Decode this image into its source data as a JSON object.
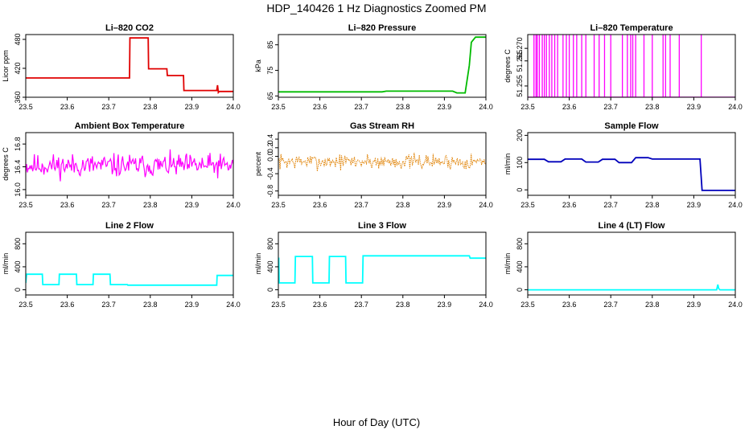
{
  "title": "HDP_140426  1 Hz Diagnostics Zoomed PM",
  "xlabel": "Hour of Day (UTC)",
  "chart_data": [
    {
      "type": "line",
      "title": "Li–820 CO2",
      "ylabel": "Licor ppm",
      "color": "#e00000",
      "xlim": [
        23.5,
        24.0
      ],
      "ylim": [
        360,
        490
      ],
      "xticks": [
        "23.5",
        "23.6",
        "23.7",
        "23.8",
        "23.9",
        "24.0"
      ],
      "yticks": [
        "360",
        "420",
        "480"
      ],
      "series": [
        {
          "x": [
            23.5,
            23.75,
            23.751,
            23.795,
            23.796,
            23.84,
            23.841,
            23.88,
            23.881,
            23.96,
            23.962,
            23.964,
            23.966,
            24.0
          ],
          "y": [
            400,
            400,
            483,
            483,
            419,
            419,
            405,
            405,
            374,
            374,
            385,
            370,
            372,
            372
          ]
        }
      ]
    },
    {
      "type": "line",
      "title": "Li–820 Pressure",
      "ylabel": "kPa",
      "color": "#00bb00",
      "xlim": [
        23.5,
        24.0
      ],
      "ylim": [
        64.5,
        89
      ],
      "xticks": [
        "23.5",
        "23.6",
        "23.7",
        "23.8",
        "23.9",
        "24.0"
      ],
      "yticks": [
        "65",
        "75",
        "85"
      ],
      "series": [
        {
          "x": [
            23.5,
            23.75,
            23.76,
            23.92,
            23.93,
            23.95,
            23.96,
            23.965,
            23.975,
            24.0
          ],
          "y": [
            66.6,
            66.6,
            66.9,
            66.9,
            66.2,
            66.2,
            77,
            86,
            88,
            88
          ]
        }
      ]
    },
    {
      "type": "line",
      "title": "Li–820 Temperature",
      "ylabel": "degrees C",
      "color": "#ff00ff",
      "xlim": [
        23.5,
        24.0
      ],
      "ylim": [
        51.2505,
        51.2755
      ],
      "xticks": [
        "23.5",
        "23.6",
        "23.7",
        "23.8",
        "23.9",
        "24.0"
      ],
      "yticks": [
        "51.255",
        "51.265",
        "51.270"
      ],
      "baseline": 51.2505,
      "peak": 51.2755,
      "spikes": [
        23.515,
        23.52,
        23.523,
        23.528,
        23.535,
        23.54,
        23.545,
        23.552,
        23.558,
        23.565,
        23.572,
        23.585,
        23.593,
        23.6,
        23.61,
        23.618,
        23.63,
        23.64,
        23.66,
        23.672,
        23.685,
        23.7,
        23.728,
        23.74,
        23.748,
        23.753,
        23.76,
        23.78,
        23.8,
        23.826,
        23.832,
        23.843,
        23.865,
        23.918
      ],
      "series": []
    },
    {
      "type": "line",
      "title": "Ambient Box Temperature",
      "ylabel": "degrees C",
      "color": "#ff00ff",
      "xlim": [
        23.5,
        24.0
      ],
      "ylim": [
        15.9,
        17.0
      ],
      "xticks": [
        "23.5",
        "23.6",
        "23.7",
        "23.8",
        "23.9",
        "24.0"
      ],
      "yticks": [
        "16.0",
        "16.4",
        "16.8"
      ],
      "noise": {
        "center": 16.42,
        "amplitude": 0.3,
        "seed": 11
      },
      "series": []
    },
    {
      "type": "scatter",
      "title": "Gas Stream RH",
      "ylabel": "percent",
      "color": "#e08000",
      "xlim": [
        23.5,
        24.0
      ],
      "ylim": [
        -0.9,
        0.55
      ],
      "xticks": [
        "23.5",
        "23.6",
        "23.7",
        "23.8",
        "23.9",
        "24.0"
      ],
      "yticks": [
        "-0.8",
        "-0.4",
        "0.0",
        "0.2",
        "0.4"
      ],
      "noise": {
        "center": -0.12,
        "amplitude": 0.26,
        "seed": 7
      },
      "series": []
    },
    {
      "type": "line",
      "title": "Sample Flow",
      "ylabel": "ml/min",
      "color": "#0000bb",
      "xlim": [
        23.5,
        24.0
      ],
      "ylim": [
        -20,
        210
      ],
      "xticks": [
        "23.5",
        "23.6",
        "23.7",
        "23.8",
        "23.9",
        "24.0"
      ],
      "yticks": [
        "0",
        "100",
        "200"
      ],
      "series": [
        {
          "x": [
            23.5,
            23.54,
            23.55,
            23.58,
            23.59,
            23.63,
            23.64,
            23.67,
            23.68,
            23.71,
            23.72,
            23.75,
            23.76,
            23.79,
            23.8,
            23.915,
            23.92,
            24.0
          ],
          "y": [
            112,
            112,
            103,
            103,
            113,
            113,
            102,
            102,
            112,
            112,
            100,
            100,
            118,
            118,
            113,
            113,
            -2,
            -2
          ]
        }
      ]
    },
    {
      "type": "line",
      "title": "Line 2 Flow",
      "ylabel": "ml/min",
      "color": "#00ffff",
      "xlim": [
        23.5,
        24.0
      ],
      "ylim": [
        -90,
        1000
      ],
      "xticks": [
        "23.5",
        "23.6",
        "23.7",
        "23.8",
        "23.9",
        "24.0"
      ],
      "yticks": [
        "0",
        "400",
        "800"
      ],
      "series": [
        {
          "x": [
            23.5,
            23.502,
            23.54,
            23.541,
            23.58,
            23.581,
            23.622,
            23.623,
            23.662,
            23.663,
            23.703,
            23.704,
            23.745,
            23.746,
            23.96,
            23.961,
            24.0
          ],
          "y": [
            120,
            270,
            270,
            90,
            90,
            270,
            270,
            90,
            90,
            270,
            270,
            90,
            90,
            80,
            80,
            250,
            250
          ]
        }
      ]
    },
    {
      "type": "line",
      "title": "Line 3 Flow",
      "ylabel": "ml/min",
      "color": "#00ffff",
      "xlim": [
        23.5,
        24.0
      ],
      "ylim": [
        -90,
        1000
      ],
      "xticks": [
        "23.5",
        "23.6",
        "23.7",
        "23.8",
        "23.9",
        "24.0"
      ],
      "yticks": [
        "0",
        "400",
        "800"
      ],
      "series": [
        {
          "x": [
            23.5,
            23.501,
            23.502,
            23.54,
            23.541,
            23.582,
            23.583,
            23.622,
            23.623,
            23.662,
            23.663,
            23.703,
            23.704,
            23.96,
            23.962,
            24.0
          ],
          "y": [
            120,
            560,
            120,
            120,
            580,
            580,
            120,
            120,
            580,
            580,
            120,
            120,
            590,
            590,
            550,
            550
          ]
        }
      ]
    },
    {
      "type": "line",
      "title": "Line 4 (LT) Flow",
      "ylabel": "ml/min",
      "color": "#00ffff",
      "xlim": [
        23.5,
        24.0
      ],
      "ylim": [
        -90,
        1000
      ],
      "xticks": [
        "23.5",
        "23.6",
        "23.7",
        "23.8",
        "23.9",
        "24.0"
      ],
      "yticks": [
        "0",
        "400",
        "800"
      ],
      "series": [
        {
          "x": [
            23.5,
            23.955,
            23.958,
            23.96,
            23.963,
            24.0
          ],
          "y": [
            0,
            0,
            90,
            20,
            0,
            0
          ]
        }
      ]
    }
  ]
}
